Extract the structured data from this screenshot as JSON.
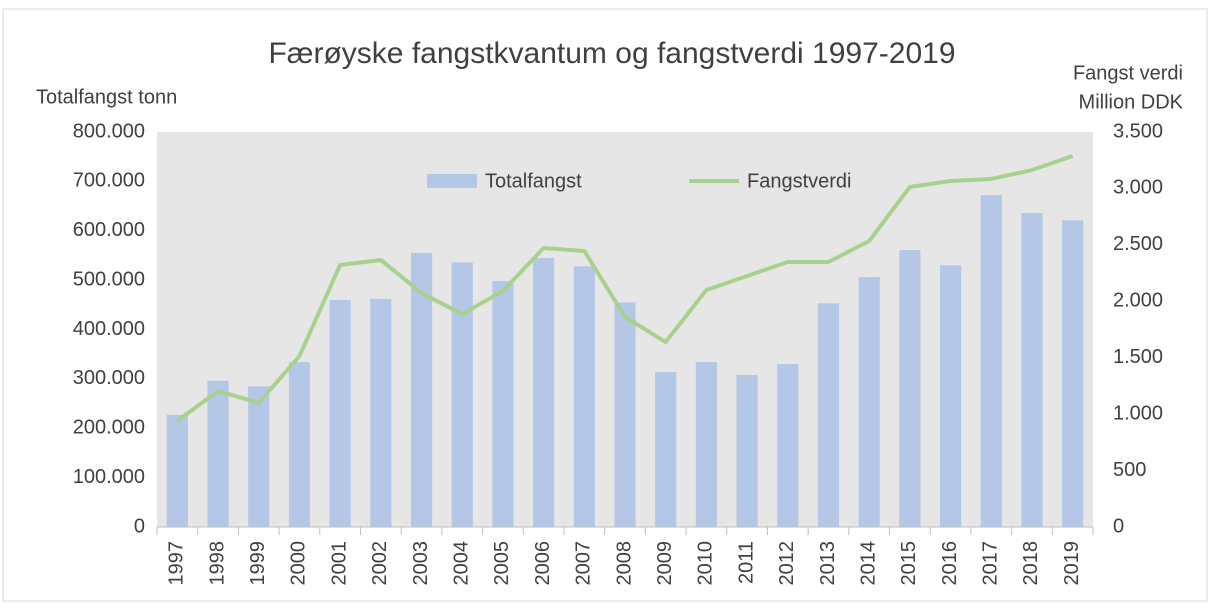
{
  "chart_data": {
    "type": "bar_line",
    "title": "Færøyske fangstkvantum og fangstverdi 1997-2019",
    "ylabel": "Totalfangst tonn",
    "y2label": [
      "Fangst verdi",
      "Million DDK"
    ],
    "categories": [
      "1997",
      "1998",
      "1999",
      "2000",
      "2001",
      "2002",
      "2003",
      "2004",
      "2005",
      "2006",
      "2007",
      "2008",
      "2009",
      "2010",
      "2011",
      "2012",
      "2013",
      "2014",
      "2015",
      "2016",
      "2017",
      "2018",
      "2019"
    ],
    "series": [
      {
        "name": "Totalfangst",
        "type": "bar",
        "color": "#b4c7e7",
        "axis": "y",
        "values": [
          227000,
          296000,
          285000,
          334000,
          460000,
          462000,
          555000,
          536000,
          498000,
          545000,
          528000,
          455000,
          314000,
          334000,
          308000,
          330000,
          453000,
          506000,
          561000,
          530000,
          672000,
          636000,
          621000
        ]
      },
      {
        "name": "Fangstverdi",
        "type": "line",
        "color": "#a9d18e",
        "axis": "y2",
        "values": [
          940,
          1205,
          1100,
          1515,
          2322,
          2366,
          2073,
          1887,
          2091,
          2472,
          2446,
          1861,
          1639,
          2100,
          2224,
          2348,
          2348,
          2534,
          3013,
          3066,
          3084,
          3163,
          3287
        ]
      }
    ],
    "ylim": [
      0,
      800000
    ],
    "yticks": [
      0,
      {
        "value": 100000,
        "label": "100.000"
      },
      {
        "value": 200000,
        "label": "200.000"
      },
      {
        "value": 300000,
        "label": "300.000"
      },
      {
        "value": 400000,
        "label": "400.000"
      },
      {
        "value": 500000,
        "label": "500.000"
      },
      {
        "value": 600000,
        "label": "600.000"
      },
      {
        "value": 700000,
        "label": "700.000"
      },
      {
        "value": 800000,
        "label": "800.000"
      }
    ],
    "y2lim": [
      0,
      3500
    ],
    "y2ticks": [
      0,
      500,
      {
        "value": 1000,
        "label": "1.000"
      },
      {
        "value": 1500,
        "label": "1.500"
      },
      {
        "value": 2000,
        "label": "2.000"
      },
      {
        "value": 2500,
        "label": "2.500"
      },
      {
        "value": 3000,
        "label": "3.000"
      },
      {
        "value": 3500,
        "label": "3.500"
      }
    ],
    "legend": "top",
    "plot_background": "#e7e6e6"
  }
}
